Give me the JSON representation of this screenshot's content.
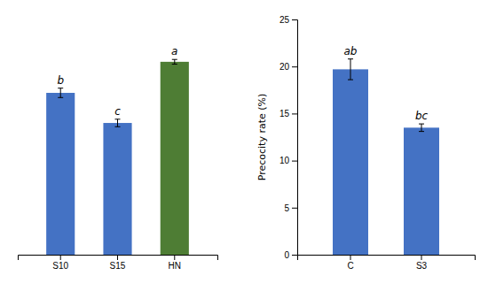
{
  "chart_data": [
    {
      "type": "bar",
      "categories": [
        "S10",
        "S15",
        "HN"
      ],
      "values": [
        17.2,
        14.0,
        20.5
      ],
      "errors": [
        0.5,
        0.4,
        0.25
      ],
      "colors": [
        "#4472C4",
        "#4472C4",
        "#4E7D34"
      ],
      "annotations": [
        "b",
        "c",
        "a"
      ],
      "ylim": [
        0,
        25
      ],
      "tick_labels": "x"
    },
    {
      "type": "bar",
      "categories": [
        "C",
        "S3"
      ],
      "values": [
        19.7,
        13.5
      ],
      "errors": [
        1.1,
        0.4
      ],
      "colors": [
        "#4472C4",
        "#4472C4"
      ],
      "annotations": [
        "ab",
        "bc"
      ],
      "y_label": "Precocity rate (%)",
      "ylim": [
        0,
        25
      ],
      "yticks": [
        0,
        5,
        10,
        15,
        20,
        25
      ]
    }
  ]
}
